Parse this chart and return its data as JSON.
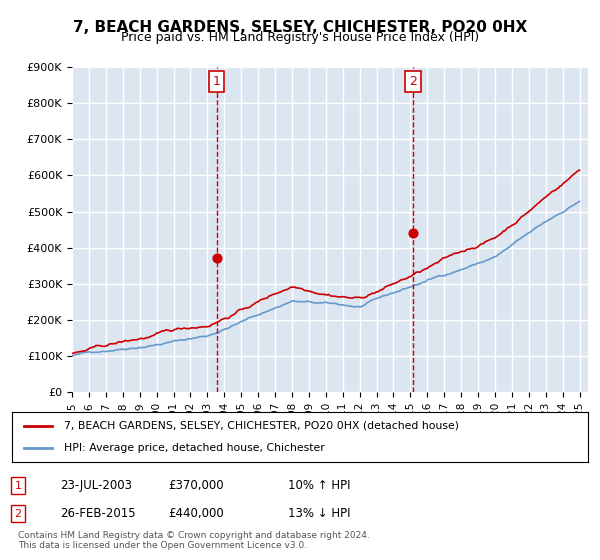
{
  "title": "7, BEACH GARDENS, SELSEY, CHICHESTER, PO20 0HX",
  "subtitle": "Price paid vs. HM Land Registry's House Price Index (HPI)",
  "legend_line1": "7, BEACH GARDENS, SELSEY, CHICHESTER, PO20 0HX (detached house)",
  "legend_line2": "HPI: Average price, detached house, Chichester",
  "footnote": "Contains HM Land Registry data © Crown copyright and database right 2024.\nThis data is licensed under the Open Government Licence v3.0.",
  "table_rows": [
    {
      "num": "1",
      "date": "23-JUL-2003",
      "price": "£370,000",
      "hpi": "10% ↑ HPI"
    },
    {
      "num": "2",
      "date": "26-FEB-2015",
      "price": "£440,000",
      "hpi": "13% ↓ HPI"
    }
  ],
  "marker1_x": 2003.55,
  "marker1_y": 370000,
  "marker2_x": 2015.15,
  "marker2_y": 440000,
  "vline1_x": 2003.55,
  "vline2_x": 2015.15,
  "ylim": [
    0,
    900000
  ],
  "xlim_start": 1995,
  "xlim_end": 2025.5,
  "red_color": "#cc0000",
  "blue_color": "#6699cc",
  "background_color": "#dce6f1",
  "plot_bg_color": "#dce6f1",
  "grid_color": "#ffffff",
  "vline_color": "#cc0000"
}
